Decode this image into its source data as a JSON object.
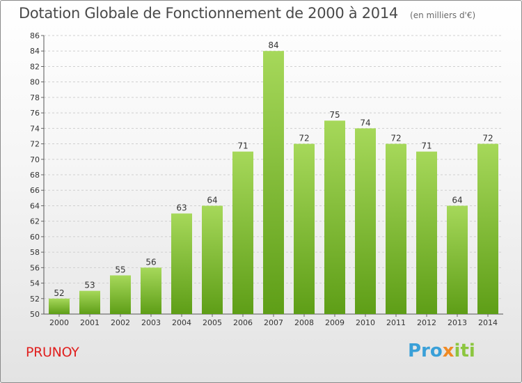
{
  "chart_data": {
    "type": "bar",
    "title": "Dotation Globale de Fonctionnement de 2000 à 2014",
    "subtitle": "(en milliers d'€)",
    "categories": [
      "2000",
      "2001",
      "2002",
      "2003",
      "2004",
      "2005",
      "2006",
      "2007",
      "2008",
      "2009",
      "2010",
      "2011",
      "2012",
      "2013",
      "2014"
    ],
    "values": [
      52,
      53,
      55,
      56,
      63,
      64,
      71,
      84,
      72,
      75,
      74,
      72,
      71,
      64,
      72
    ],
    "ylim": [
      50,
      86
    ],
    "yticks": [
      50,
      52,
      54,
      56,
      58,
      60,
      62,
      64,
      66,
      68,
      70,
      72,
      74,
      76,
      78,
      80,
      82,
      84,
      86
    ],
    "grid": true,
    "bar_color": "#8cc63f"
  },
  "footer": {
    "commune": "PRUNOY",
    "logo": {
      "p1": "Pro",
      "p2": "x",
      "p3": "iti"
    }
  },
  "colors": {
    "commune": "#e0201f",
    "bar_top": "#a6d85a",
    "bar_bottom": "#5e9e17"
  }
}
